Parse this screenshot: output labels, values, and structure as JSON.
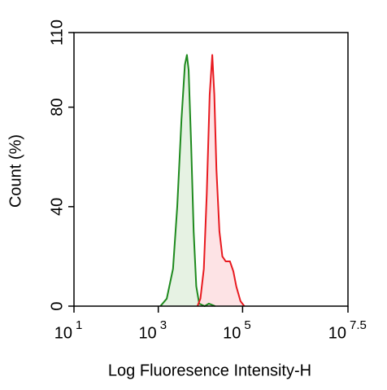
{
  "chart_data": {
    "type": "histogram_line",
    "x_label": "Log Fluoresence Intensity-H",
    "y_label": "Count  (%)",
    "xscale": "log",
    "xlim": [
      10,
      31622776.6
    ],
    "xticks": [
      {
        "value": 10,
        "label": "10",
        "exponent": "1"
      },
      {
        "value": 1000,
        "label": "10",
        "exponent": "3"
      },
      {
        "value": 100000,
        "label": "10",
        "exponent": "5"
      },
      {
        "value": 31622776.6,
        "label": "10",
        "exponent": "7.5"
      }
    ],
    "ylim": [
      0,
      110
    ],
    "yticks": [
      0,
      40,
      80,
      110
    ],
    "series": [
      {
        "color": "#1e8a1e",
        "fill": "#e6f2e3",
        "x": [
          1122,
          1585,
          2239,
          2818,
          3548,
          4266,
          4786,
          5248,
          6026,
          6918,
          7943,
          9333,
          12589,
          15849,
          22387
        ],
        "y": [
          0,
          3,
          15,
          40,
          75,
          97,
          101,
          95,
          65,
          30,
          8,
          1,
          0,
          1,
          0
        ]
      },
      {
        "color": "#e8191f",
        "fill": "#fde3e5",
        "x": [
          8511,
          10000,
          12023,
          14125,
          16596,
          19055,
          21380,
          23988,
          28184,
          33113,
          39811,
          50119,
          60256,
          70795,
          89125,
          109648
        ],
        "y": [
          0,
          3,
          15,
          45,
          85,
          101,
          85,
          55,
          30,
          20,
          18,
          18,
          14,
          8,
          2,
          0
        ]
      }
    ]
  }
}
